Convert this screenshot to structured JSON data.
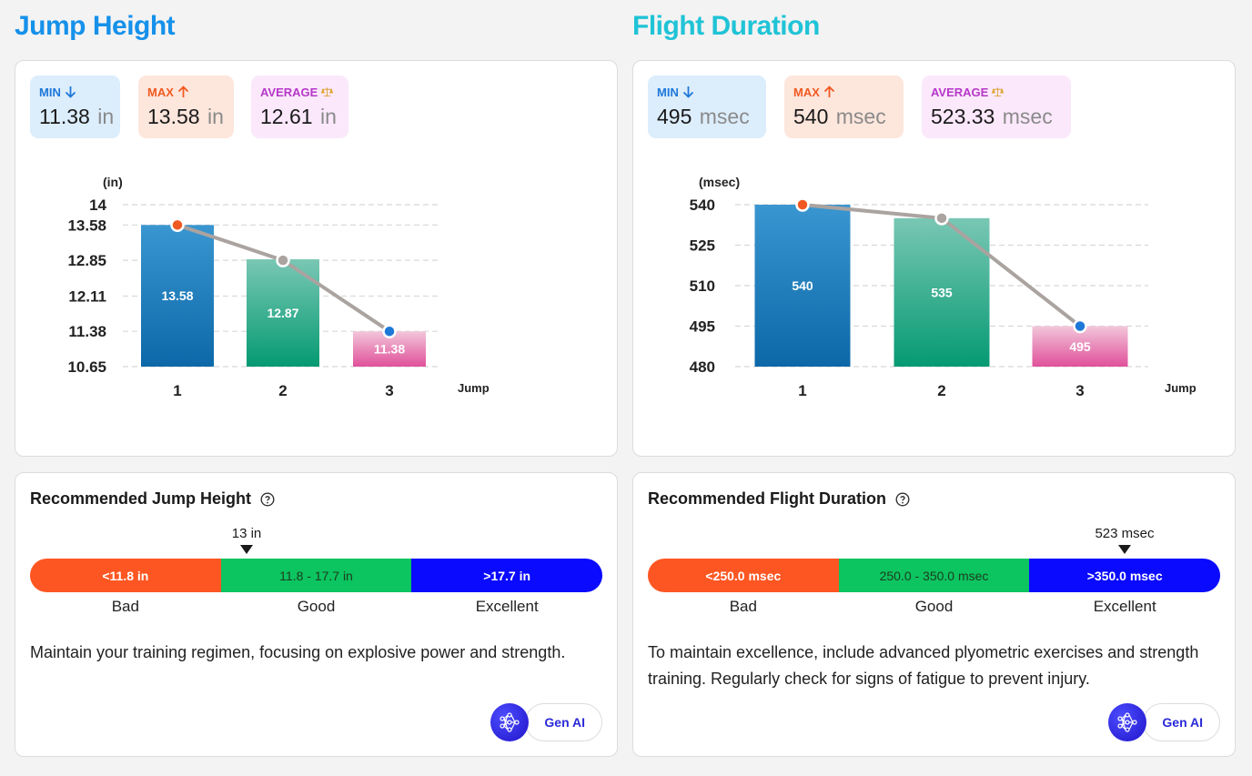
{
  "jump": {
    "title": "Jump Height",
    "stats": {
      "min": {
        "label": "MIN",
        "value": "11.38",
        "unit": "in"
      },
      "max": {
        "label": "MAX",
        "value": "13.58",
        "unit": "in"
      },
      "avg": {
        "label": "AVERAGE",
        "value": "12.61",
        "unit": "in"
      }
    },
    "recommended": {
      "title": "Recommended Jump Height",
      "marker": "13 in",
      "segments": [
        "<11.8 in",
        "11.8 - 17.7 in",
        ">17.7 in"
      ],
      "labels": [
        "Bad",
        "Good",
        "Excellent"
      ],
      "text": "Maintain your training regimen, focusing on explosive power and strength.",
      "genai": "Gen AI"
    }
  },
  "flight": {
    "title": "Flight Duration",
    "stats": {
      "min": {
        "label": "MIN",
        "value": "495",
        "unit": "msec"
      },
      "max": {
        "label": "MAX",
        "value": "540",
        "unit": "msec"
      },
      "avg": {
        "label": "AVERAGE",
        "value": "523.33",
        "unit": "msec"
      }
    },
    "recommended": {
      "title": "Recommended Flight Duration",
      "marker": "523 msec",
      "segments": [
        "<250.0 msec",
        "250.0 - 350.0 msec",
        ">350.0 msec"
      ],
      "labels": [
        "Bad",
        "Good",
        "Excellent"
      ],
      "text": "To maintain excellence, include advanced plyometric exercises and strength training. Regularly check for signs of fatigue to prevent injury.",
      "genai": "Gen AI"
    }
  },
  "colors": {
    "min": "#1e78d8",
    "max": "#f05a22",
    "avg": "#b637c8",
    "bar1": "#1a7fc0",
    "bar2": "#19a886",
    "bar3": "#e572a8",
    "line": "#aaa3a0"
  },
  "chart_data": [
    {
      "type": "bar",
      "ylabel": "(in)",
      "xlabel": "Jump",
      "categories": [
        "1",
        "2",
        "3"
      ],
      "values": [
        13.58,
        12.87,
        11.38
      ],
      "value_labels": [
        "13.58",
        "12.87",
        "11.38"
      ],
      "line_values": [
        13.58,
        12.85,
        11.38
      ],
      "yticks": [
        "10.65",
        "11.38",
        "12.11",
        "12.85",
        "13.58",
        "14"
      ],
      "ytick_values": [
        10.65,
        11.38,
        12.11,
        12.85,
        13.58,
        14
      ],
      "ylim": [
        10.65,
        14
      ],
      "grid": true,
      "legend": "none"
    },
    {
      "type": "bar",
      "ylabel": "(msec)",
      "xlabel": "Jump",
      "categories": [
        "1",
        "2",
        "3"
      ],
      "values": [
        540,
        535,
        495
      ],
      "value_labels": [
        "540",
        "535",
        "495"
      ],
      "line_values": [
        540,
        535,
        495
      ],
      "yticks": [
        "480",
        "495",
        "510",
        "525",
        "540"
      ],
      "ytick_values": [
        480,
        495,
        510,
        525,
        540
      ],
      "ylim": [
        480,
        540
      ],
      "grid": true,
      "legend": "none"
    }
  ]
}
